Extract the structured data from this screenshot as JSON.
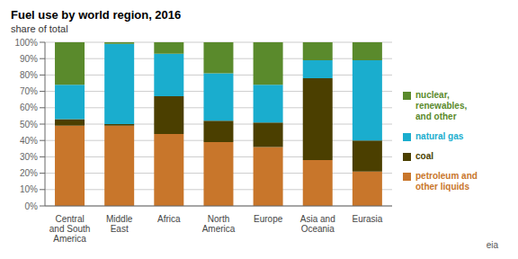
{
  "chart_data": {
    "type": "bar",
    "title": "Fuel use by world region, 2016",
    "subtitle": "share of total",
    "categories": [
      "Central\nand South\nAmerica",
      "Middle\nEast",
      "Africa",
      "North\nAmerica",
      "Europe",
      "Asia and\nOceania",
      "Eurasia"
    ],
    "series": [
      {
        "name": "petroleum and\nother liquids",
        "color": "#C8762B",
        "values": [
          49,
          49,
          44,
          39,
          36,
          28,
          21
        ]
      },
      {
        "name": "coal",
        "color": "#4B3F00",
        "values": [
          4,
          1,
          23,
          13,
          15,
          50,
          19
        ]
      },
      {
        "name": "natural gas",
        "color": "#1AADCE",
        "values": [
          21,
          49,
          26,
          29,
          23,
          11,
          49
        ]
      },
      {
        "name": "nuclear,\nrenewables,\nand other",
        "color": "#5A8A2C",
        "values": [
          26,
          1,
          7,
          19,
          26,
          11,
          11
        ]
      }
    ],
    "ylim": [
      0,
      100
    ],
    "yticks": [
      {
        "value": 0,
        "label": "0%"
      },
      {
        "value": 10,
        "label": "10%"
      },
      {
        "value": 20,
        "label": "20%"
      },
      {
        "value": 30,
        "label": "30%"
      },
      {
        "value": 40,
        "label": "40%"
      },
      {
        "value": 50,
        "label": "50%"
      },
      {
        "value": 60,
        "label": "60%"
      },
      {
        "value": 70,
        "label": "70%"
      },
      {
        "value": 80,
        "label": "80%"
      },
      {
        "value": 90,
        "label": "90%"
      },
      {
        "value": 100,
        "label": "100%"
      }
    ],
    "stacked": true,
    "grid": true,
    "legend": "right",
    "annotations": [
      "eia"
    ]
  }
}
